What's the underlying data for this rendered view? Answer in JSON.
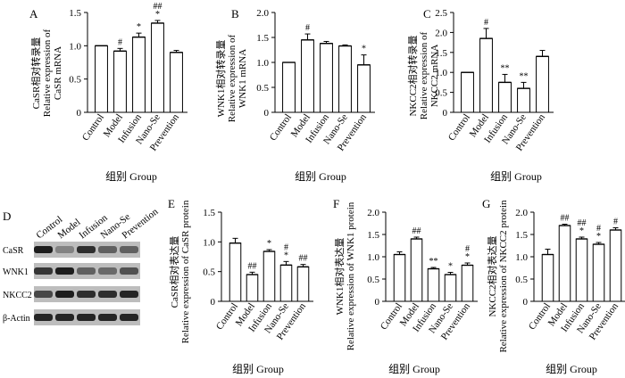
{
  "figure_title": "",
  "chart_data": [
    {
      "panel": "A",
      "type": "bar",
      "title": "",
      "ylabel_lines": [
        "CaSR相对转录量",
        "Relative expression of",
        "CaSR mRNA"
      ],
      "xlabel": "组别  Group",
      "categories": [
        "Control",
        "Model",
        "Infusion",
        "Nano-Se",
        "Prevention"
      ],
      "values": [
        1.0,
        0.92,
        1.13,
        1.34,
        0.9
      ],
      "errors": [
        0.01,
        0.04,
        0.06,
        0.04,
        0.03
      ],
      "sig": [
        "",
        "#",
        "*",
        "##\n*",
        ""
      ],
      "ylim": [
        0,
        1.5
      ],
      "yticks": [
        "0",
        "0.5",
        "1.0",
        "1.5"
      ]
    },
    {
      "panel": "B",
      "type": "bar",
      "title": "",
      "ylabel_lines": [
        "WNK1相对转录量",
        "Relative expression of",
        "WNK1 mRNA"
      ],
      "xlabel": "组别  Group",
      "categories": [
        "Control",
        "Model",
        "Infusion",
        "Nano-Se",
        "Prevention"
      ],
      "values": [
        1.0,
        1.45,
        1.38,
        1.33,
        0.95
      ],
      "errors": [
        0.01,
        0.12,
        0.04,
        0.02,
        0.2
      ],
      "sig": [
        "",
        "#",
        "",
        "",
        "*"
      ],
      "ylim": [
        0,
        2.0
      ],
      "yticks": [
        "0",
        "0.5",
        "1.0",
        "1.5",
        "2.0"
      ]
    },
    {
      "panel": "C",
      "type": "bar",
      "title": "",
      "ylabel_lines": [
        "NKCC2相对转录量",
        "Relative expression of",
        "NKCC2 mRNA"
      ],
      "xlabel": "组别  Group",
      "categories": [
        "Control",
        "Model",
        "Infusion",
        "Nano-Se",
        "Prevention"
      ],
      "values": [
        1.0,
        1.85,
        0.75,
        0.6,
        1.4
      ],
      "errors": [
        0.01,
        0.25,
        0.2,
        0.15,
        0.15
      ],
      "sig": [
        "",
        "#",
        "**",
        "**",
        ""
      ],
      "ylim": [
        0,
        2.5
      ],
      "yticks": [
        "0",
        "0.5",
        "1.0",
        "1.5",
        "2.0",
        "2.5"
      ]
    },
    {
      "panel": "E",
      "type": "bar",
      "title": "",
      "ylabel_lines": [
        "CaSR相对表达量",
        "Relative expression of CaSR protein"
      ],
      "xlabel": "组别  Group",
      "categories": [
        "Control",
        "Model",
        "Infusion",
        "Nano-Se",
        "Prevention"
      ],
      "values": [
        0.98,
        0.45,
        0.84,
        0.61,
        0.58
      ],
      "errors": [
        0.08,
        0.04,
        0.03,
        0.06,
        0.04
      ],
      "sig": [
        "",
        "##",
        "*",
        "#\n*",
        "##"
      ],
      "ylim": [
        0,
        1.5
      ],
      "yticks": [
        "0",
        "0.5",
        "1.0",
        "1.5"
      ]
    },
    {
      "panel": "F",
      "type": "bar",
      "title": "",
      "ylabel_lines": [
        "WNK1相对表达量",
        "Relative expression of WNK1 protein"
      ],
      "xlabel": "组别  Group",
      "categories": [
        "Control",
        "Model",
        "Infusion",
        "Nano-Se",
        "Prevention"
      ],
      "values": [
        1.05,
        1.4,
        0.73,
        0.6,
        0.81
      ],
      "errors": [
        0.06,
        0.04,
        0.03,
        0.05,
        0.05
      ],
      "sig": [
        "",
        "##",
        "**",
        "*",
        "#\n*"
      ],
      "ylim": [
        0,
        2.0
      ],
      "yticks": [
        "0",
        "0.5",
        "1.0",
        "1.5",
        "2.0"
      ]
    },
    {
      "panel": "G",
      "type": "bar",
      "title": "",
      "ylabel_lines": [
        "NKCC2相对表达量",
        "Relative expression of NKCC2 protein"
      ],
      "xlabel": "组别  Group",
      "categories": [
        "Control",
        "Model",
        "Infusion",
        "Nano-Se",
        "Prevention"
      ],
      "values": [
        1.05,
        1.7,
        1.4,
        1.28,
        1.6
      ],
      "errors": [
        0.12,
        0.03,
        0.04,
        0.04,
        0.05
      ],
      "sig": [
        "",
        "##",
        "##\n*",
        "#\n*",
        "#"
      ],
      "ylim": [
        0,
        2.0
      ],
      "yticks": [
        "0",
        "0.5",
        "1.0",
        "1.5",
        "2.0"
      ]
    }
  ],
  "blot": {
    "panel": "D",
    "lanes": [
      "Control",
      "Model",
      "Infusion",
      "Nano-Se",
      "Prevention"
    ],
    "rows": [
      "CaSR",
      "WNK1",
      "NKCC2",
      "β-Actin"
    ],
    "intensity": [
      [
        0.95,
        0.35,
        0.85,
        0.55,
        0.55
      ],
      [
        0.8,
        0.95,
        0.55,
        0.5,
        0.65
      ],
      [
        0.7,
        0.95,
        0.85,
        0.85,
        0.9
      ],
      [
        0.9,
        0.9,
        0.9,
        0.9,
        0.9
      ]
    ]
  }
}
